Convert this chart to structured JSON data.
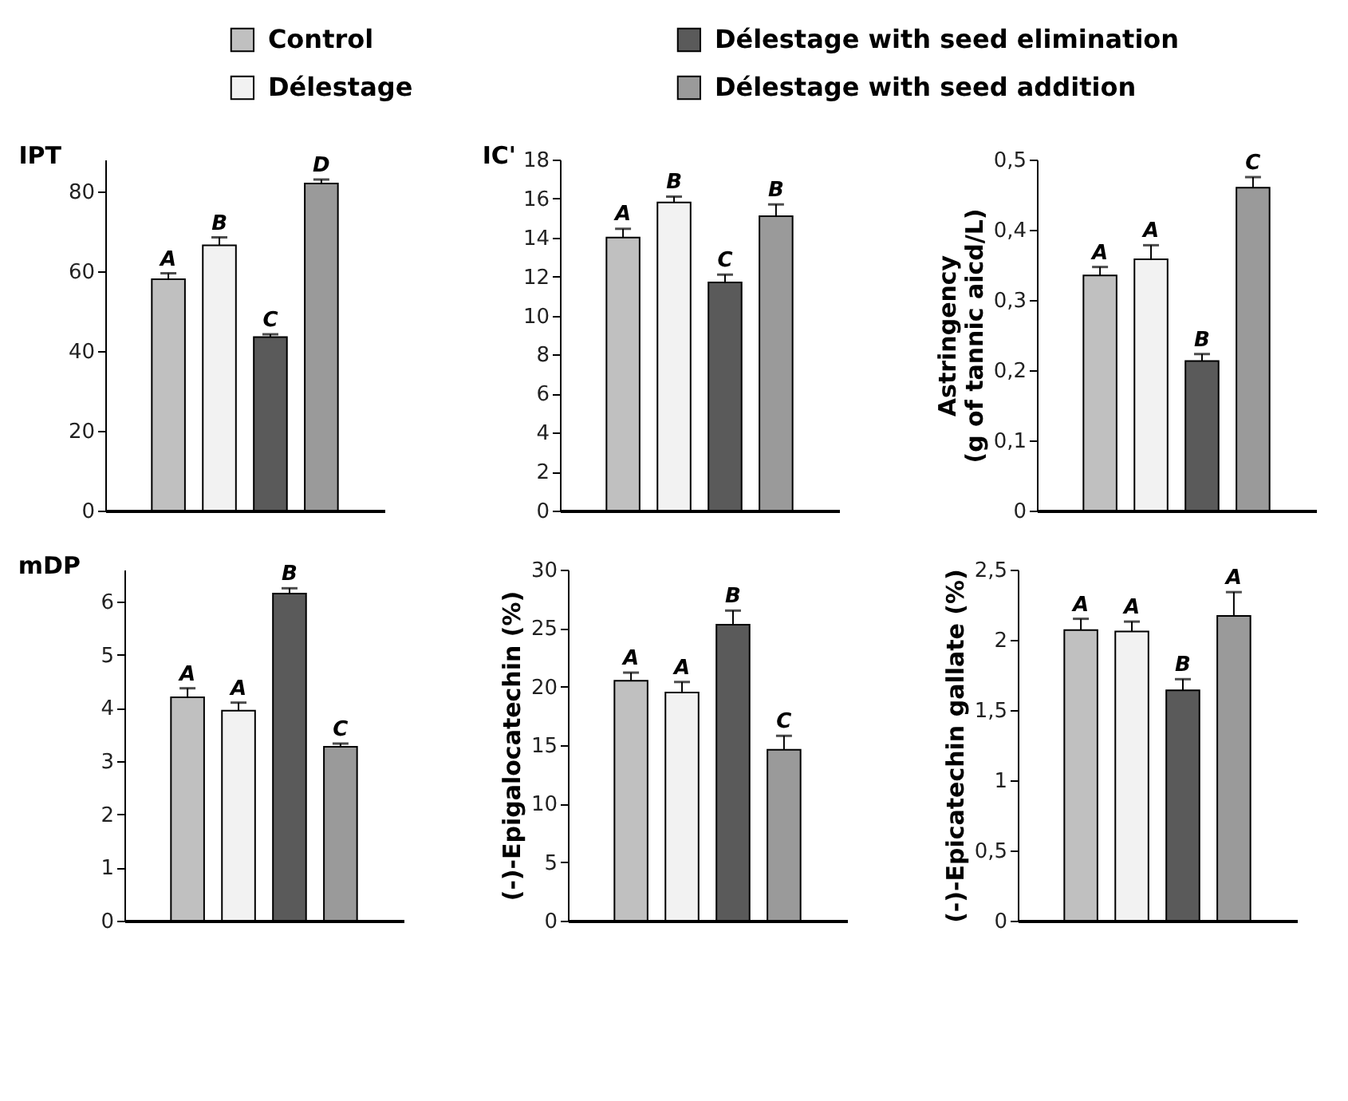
{
  "chart_data": [
    {
      "type": "bar",
      "ylabel": "IPT",
      "categories": [
        null
      ],
      "ylim": [
        0,
        88
      ],
      "yticks": [
        0,
        20,
        40,
        60,
        80
      ],
      "legend": "top",
      "tick_labels": "y",
      "series": [
        {
          "name": "Control",
          "color": "#c0c0c0",
          "values": [
            58
          ],
          "errors": [
            [
              58,
              59.5
            ]
          ]
        },
        {
          "name": "Délestage",
          "color": "#f2f2f2",
          "values": [
            66.5
          ],
          "errors": [
            [
              66.5,
              68.5
            ]
          ]
        },
        {
          "name": "Délestage with seed elimination",
          "color": "#5a5a5a",
          "values": [
            43.5
          ],
          "errors": [
            [
              43.5,
              44.2
            ]
          ]
        },
        {
          "name": "Délestage with seed addition",
          "color": "#9a9a9a",
          "values": [
            82
          ],
          "errors": [
            [
              82,
              83
            ]
          ]
        }
      ],
      "annotations": [
        {
          "text": "A",
          "y": 59.5
        },
        {
          "text": "B",
          "y": 68.5
        },
        {
          "text": "C",
          "y": 44.2
        },
        {
          "text": "D",
          "y": 83
        }
      ]
    },
    {
      "type": "bar",
      "ylabel": "IC'",
      "categories": [
        null
      ],
      "ylim": [
        0,
        18
      ],
      "yticks": [
        0,
        2,
        4,
        6,
        8,
        10,
        12,
        14,
        16,
        18
      ],
      "tick_labels": "y",
      "series": [
        {
          "color": "#c0c0c0",
          "values": [
            14
          ],
          "errors": [
            [
              14,
              14.45
            ]
          ]
        },
        {
          "color": "#f2f2f2",
          "values": [
            15.8
          ],
          "errors": [
            [
              15.8,
              16.1
            ]
          ]
        },
        {
          "color": "#5a5a5a",
          "values": [
            11.7
          ],
          "errors": [
            [
              11.7,
              12.1
            ]
          ]
        },
        {
          "color": "#9a9a9a",
          "values": [
            15.1
          ],
          "errors": [
            [
              15.1,
              15.7
            ]
          ]
        }
      ],
      "annotations": [
        {
          "text": "A",
          "y": 14.5
        },
        {
          "text": "B",
          "y": 16.1
        },
        {
          "text": "C",
          "y": 12.1
        },
        {
          "text": "B",
          "y": 15.7
        }
      ]
    },
    {
      "type": "bar",
      "ylabel": "Astringency\n(g of tannic aicd/L)",
      "categories": [
        null
      ],
      "ylim": [
        0,
        0.5
      ],
      "yticks": [
        0,
        {
          "value": 0.1,
          "label": "0,1"
        },
        {
          "value": 0.2,
          "label": "0,2"
        },
        {
          "value": 0.3,
          "label": "0,3"
        },
        {
          "value": 0.4,
          "label": "0,4"
        },
        {
          "value": 0.5,
          "label": "0,5"
        }
      ],
      "tick_labels": "y",
      "series": [
        {
          "color": "#c0c0c0",
          "values": [
            0.335
          ],
          "errors": [
            [
              0.335,
              0.347
            ]
          ]
        },
        {
          "color": "#f2f2f2",
          "values": [
            0.358
          ],
          "errors": [
            [
              0.358,
              0.378
            ]
          ]
        },
        {
          "color": "#5a5a5a",
          "values": [
            0.213
          ],
          "errors": [
            [
              0.213,
              0.223
            ]
          ]
        },
        {
          "color": "#9a9a9a",
          "values": [
            0.46
          ],
          "errors": [
            [
              0.46,
              0.475
            ]
          ]
        }
      ],
      "annotations": [
        {
          "text": "A",
          "y": 0.347
        },
        {
          "text": "A",
          "y": 0.378
        },
        {
          "text": "B",
          "y": 0.223
        },
        {
          "text": "C",
          "y": 0.475
        }
      ]
    },
    {
      "type": "bar",
      "ylabel": "mDP",
      "categories": [
        null
      ],
      "ylim": [
        0,
        6.6
      ],
      "yticks": [
        0,
        1,
        2,
        3,
        4,
        5,
        6
      ],
      "tick_labels": "y",
      "series": [
        {
          "color": "#c0c0c0",
          "values": [
            4.2
          ],
          "errors": [
            [
              4.2,
              4.37
            ]
          ]
        },
        {
          "color": "#f2f2f2",
          "values": [
            3.95
          ],
          "errors": [
            [
              3.95,
              4.1
            ]
          ]
        },
        {
          "color": "#5a5a5a",
          "values": [
            6.15
          ],
          "errors": [
            [
              6.15,
              6.25
            ]
          ]
        },
        {
          "color": "#9a9a9a",
          "values": [
            3.27
          ],
          "errors": [
            [
              3.27,
              3.33
            ]
          ]
        }
      ],
      "annotations": [
        {
          "text": "A",
          "y": 4.37
        },
        {
          "text": "A",
          "y": 4.1
        },
        {
          "text": "B",
          "y": 6.25
        },
        {
          "text": "C",
          "y": 3.33
        }
      ]
    },
    {
      "type": "bar",
      "ylabel": "(-)-Epigalocatechin (%)",
      "categories": [
        null
      ],
      "ylim": [
        0,
        30
      ],
      "yticks": [
        0,
        5,
        10,
        15,
        20,
        25,
        30
      ],
      "tick_labels": "y",
      "series": [
        {
          "color": "#c0c0c0",
          "values": [
            20.5
          ],
          "errors": [
            [
              20.5,
              21.2
            ]
          ]
        },
        {
          "color": "#f2f2f2",
          "values": [
            19.5
          ],
          "errors": [
            [
              19.5,
              20.4
            ]
          ]
        },
        {
          "color": "#5a5a5a",
          "values": [
            25.3
          ],
          "errors": [
            [
              25.3,
              26.5
            ]
          ]
        },
        {
          "color": "#9a9a9a",
          "values": [
            14.6
          ],
          "errors": [
            [
              14.6,
              15.8
            ]
          ]
        }
      ],
      "annotations": [
        {
          "text": "A",
          "y": 21.2
        },
        {
          "text": "A",
          "y": 20.4
        },
        {
          "text": "B",
          "y": 26.5
        },
        {
          "text": "C",
          "y": 15.8
        }
      ]
    },
    {
      "type": "bar",
      "ylabel": "(-)-Epicatechin gallate (%)",
      "categories": [
        null
      ],
      "ylim": [
        0,
        2.5
      ],
      "yticks": [
        0,
        {
          "value": 0.5,
          "label": "0,5"
        },
        1,
        {
          "value": 1.5,
          "label": "1,5"
        },
        2,
        {
          "value": 2.5,
          "label": "2,5"
        }
      ],
      "tick_labels": "y",
      "series": [
        {
          "color": "#c0c0c0",
          "values": [
            2.07
          ],
          "errors": [
            [
              2.07,
              2.15
            ]
          ]
        },
        {
          "color": "#f2f2f2",
          "values": [
            2.06
          ],
          "errors": [
            [
              2.06,
              2.13
            ]
          ]
        },
        {
          "color": "#5a5a5a",
          "values": [
            1.64
          ],
          "errors": [
            [
              1.64,
              1.72
            ]
          ]
        },
        {
          "color": "#9a9a9a",
          "values": [
            2.17
          ],
          "errors": [
            [
              2.17,
              2.34
            ]
          ]
        }
      ],
      "annotations": [
        {
          "text": "A",
          "y": 2.15
        },
        {
          "text": "A",
          "y": 2.13
        },
        {
          "text": "B",
          "y": 1.72
        },
        {
          "text": "A",
          "y": 2.34
        }
      ]
    }
  ]
}
